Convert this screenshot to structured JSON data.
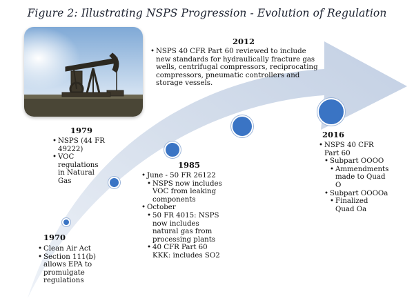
{
  "title": "Figure 2:  Illustrating NSPS Progression - Evolution of Regulation",
  "photo": {
    "subject": "oil pumpjack"
  },
  "colors": {
    "arrow": "#c9d5e8",
    "dot": "#3a74c4"
  },
  "milestones": [
    {
      "year": "1970",
      "items": [
        "Clean Air Act",
        "Section 111(b) allows EPA to promulgate regulations"
      ]
    },
    {
      "year": "1979",
      "items": [
        "NSPS (44 FR 49222)",
        "VOC regulations in Natural Gas"
      ]
    },
    {
      "year": "1985",
      "items": [
        "June - 50 FR 26122",
        "NSPS now includes VOC from leaking components",
        "October",
        "50 FR 4015: NSPS now includes natural gas from processing plants",
        "40 CFR Part 60 KKK: includes SO2"
      ]
    },
    {
      "year": "2012",
      "items": [
        "NSPS 40 CFR Part 60 reviewed to include new standards for hydraulically fracture gas wells, centrifugal compressors, reciprocating compressors, pneumatic controllers and storage vessels."
      ]
    },
    {
      "year": "2016",
      "items": [
        "NSPS 40 CFR Part 60",
        "Subpart OOOO",
        "Ammendments made to Quad O",
        "Subpart OOOOa",
        "Finalized Quad Oa"
      ]
    }
  ]
}
